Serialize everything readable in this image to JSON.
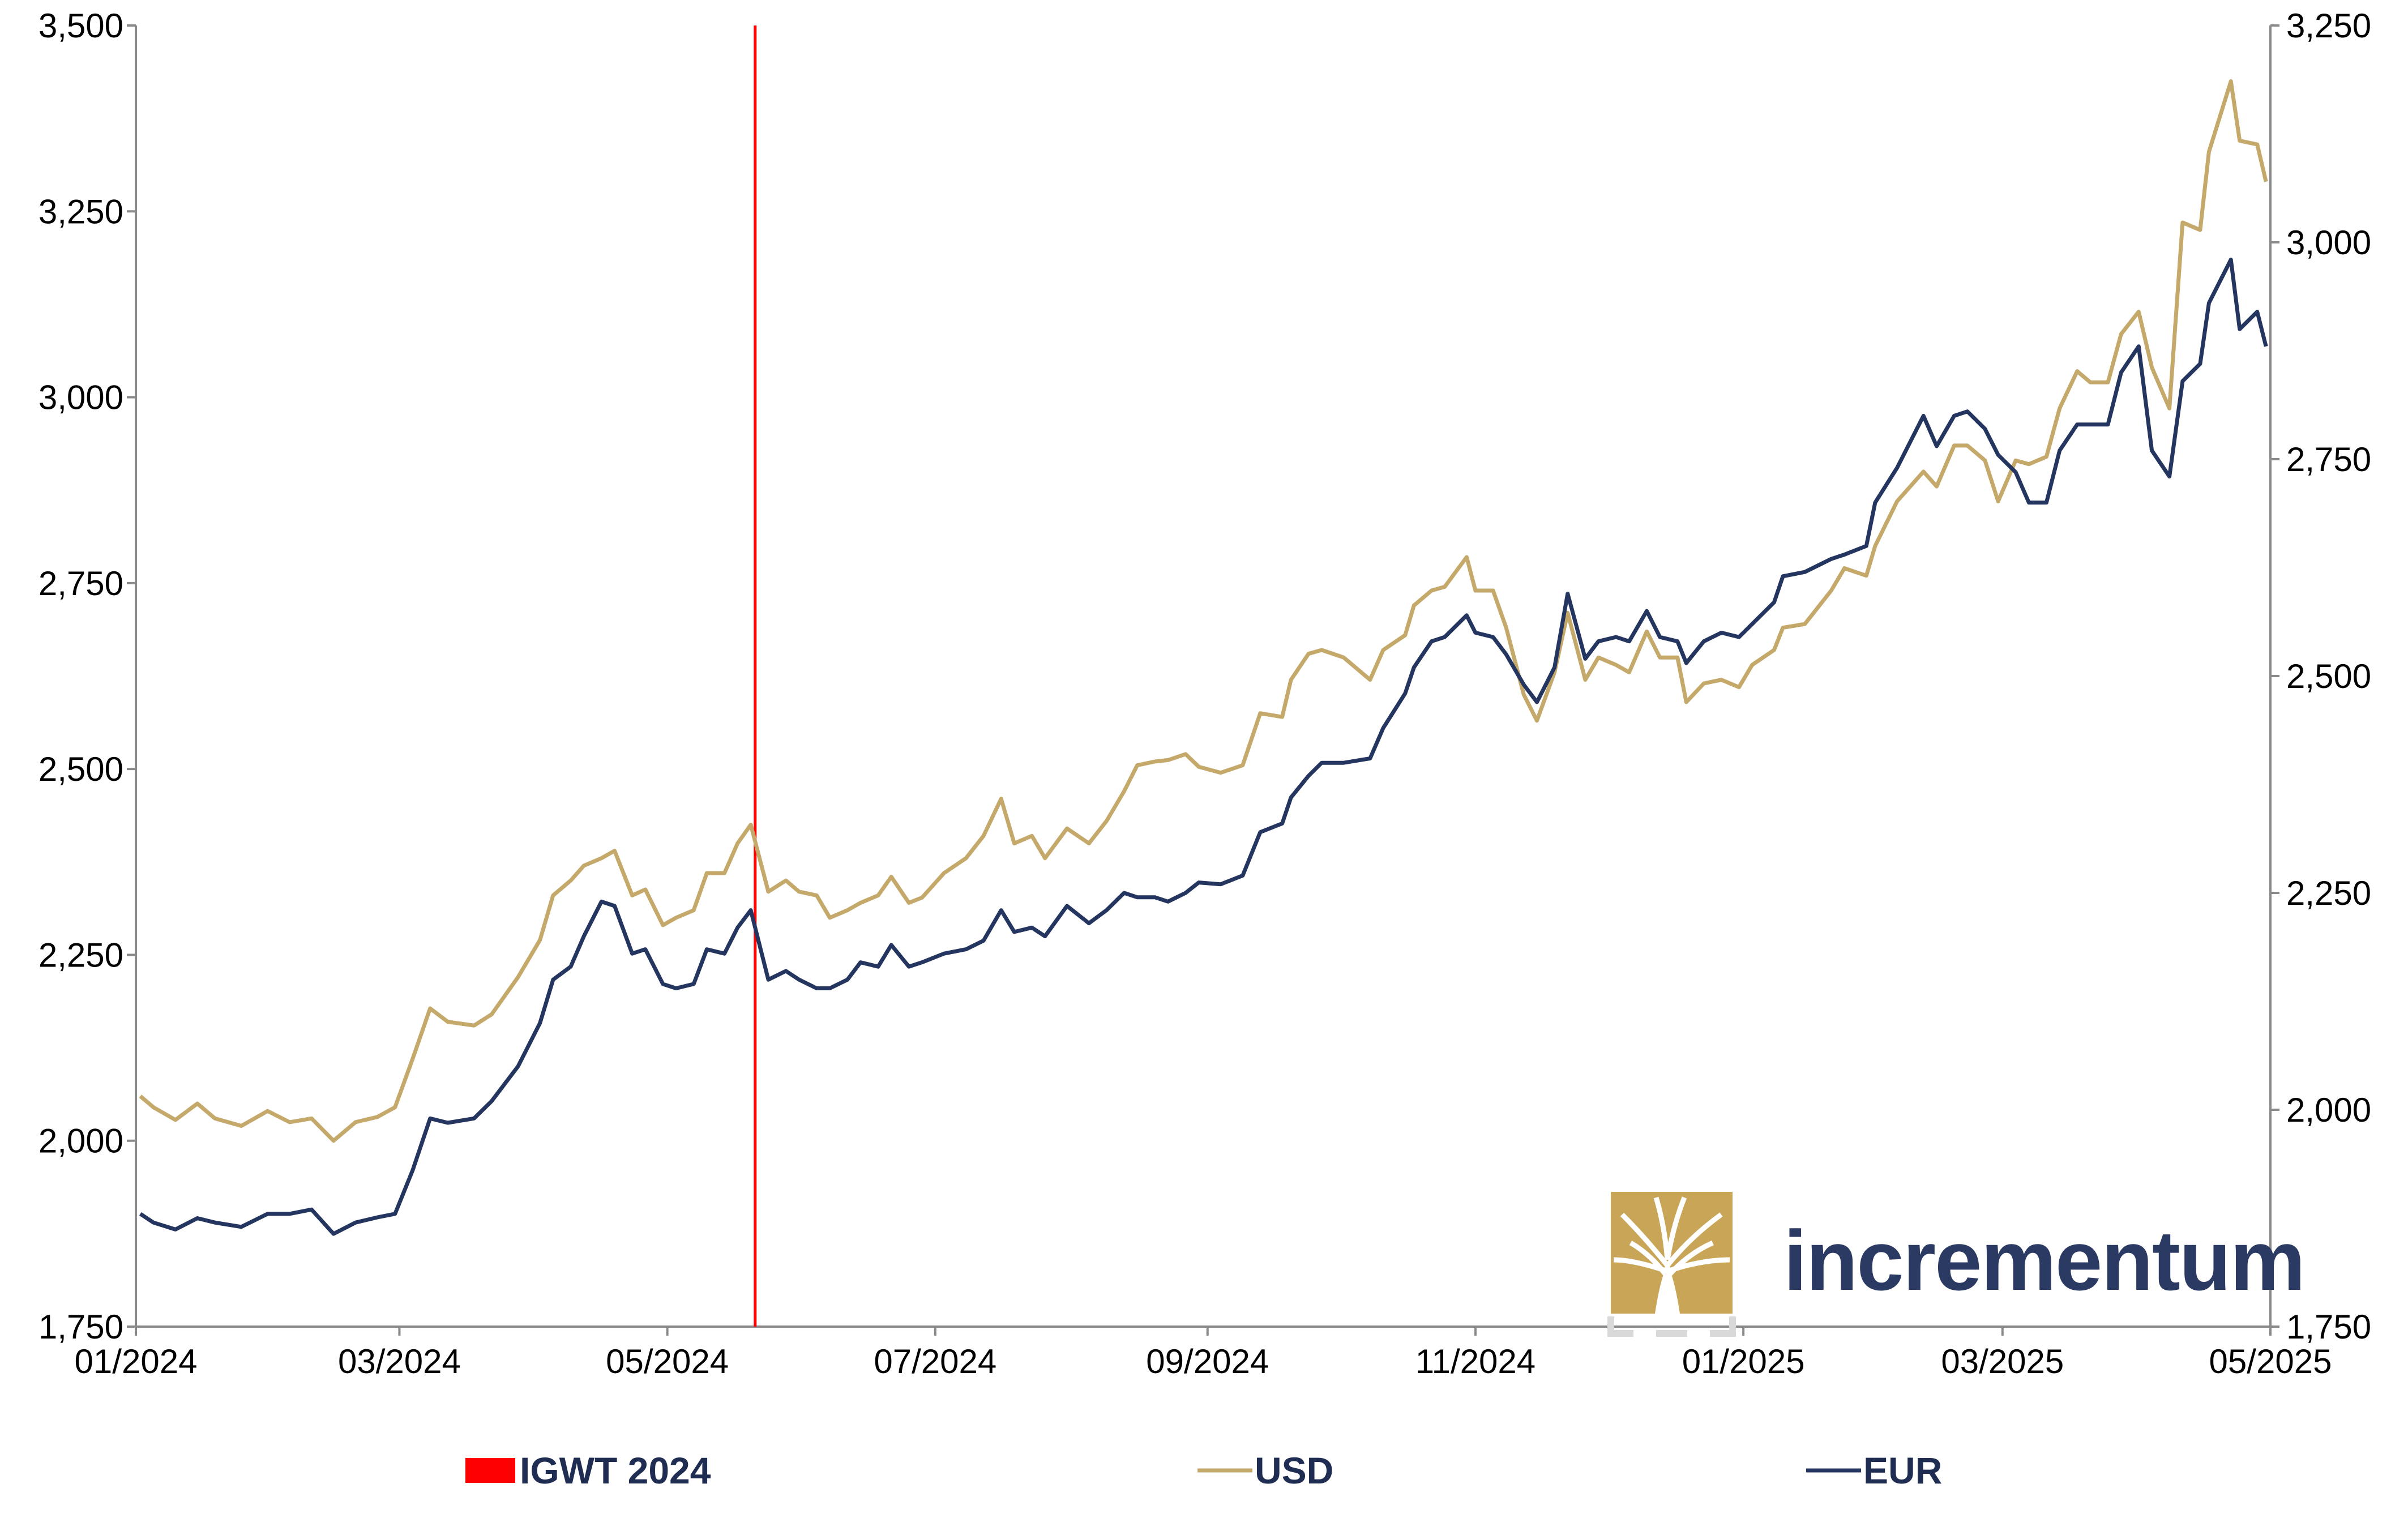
{
  "chart_data": {
    "type": "line",
    "title": "",
    "x_ticks": [
      "01/2024",
      "03/2024",
      "05/2024",
      "07/2024",
      "09/2024",
      "11/2024",
      "01/2025",
      "03/2025",
      "05/2025"
    ],
    "x_range": [
      "2024-01-01",
      "2025-05-01"
    ],
    "y_left": {
      "ticks": [
        "1,750",
        "2,000",
        "2,250",
        "2,500",
        "2,750",
        "3,000",
        "3,250",
        "3,500"
      ],
      "range": [
        1750,
        3500
      ],
      "series": "USD"
    },
    "y_right": {
      "ticks": [
        "1,750",
        "2,000",
        "2,250",
        "2,500",
        "2,750",
        "3,000",
        "3,250"
      ],
      "range": [
        1750,
        3250
      ],
      "series": "EUR"
    },
    "grid": false,
    "legend_position": "bottom",
    "legend": [
      {
        "label": "IGWT 2024",
        "color": "#ff0000",
        "kind": "bar"
      },
      {
        "label": "USD",
        "color": "#c4a96b",
        "kind": "line"
      },
      {
        "label": "EUR",
        "color": "#24355f",
        "kind": "line"
      }
    ],
    "annotation": {
      "label": "IGWT 2024",
      "date": "2024-05-21",
      "color": "#ff0000"
    },
    "series": [
      {
        "name": "USD",
        "axis": "left",
        "color": "#c4a96b",
        "points": [
          [
            "2024-01-02",
            2060
          ],
          [
            "2024-01-05",
            2045
          ],
          [
            "2024-01-10",
            2028
          ],
          [
            "2024-01-15",
            2050
          ],
          [
            "2024-01-19",
            2030
          ],
          [
            "2024-01-25",
            2020
          ],
          [
            "2024-01-31",
            2040
          ],
          [
            "2024-02-05",
            2025
          ],
          [
            "2024-02-10",
            2030
          ],
          [
            "2024-02-15",
            2000
          ],
          [
            "2024-02-20",
            2025
          ],
          [
            "2024-02-25",
            2032
          ],
          [
            "2024-02-29",
            2045
          ],
          [
            "2024-03-04",
            2110
          ],
          [
            "2024-03-08",
            2178
          ],
          [
            "2024-03-12",
            2160
          ],
          [
            "2024-03-18",
            2155
          ],
          [
            "2024-03-22",
            2170
          ],
          [
            "2024-03-28",
            2220
          ],
          [
            "2024-04-02",
            2270
          ],
          [
            "2024-04-05",
            2330
          ],
          [
            "2024-04-09",
            2350
          ],
          [
            "2024-04-12",
            2370
          ],
          [
            "2024-04-16",
            2380
          ],
          [
            "2024-04-19",
            2390
          ],
          [
            "2024-04-23",
            2330
          ],
          [
            "2024-04-26",
            2338
          ],
          [
            "2024-04-30",
            2290
          ],
          [
            "2024-05-03",
            2300
          ],
          [
            "2024-05-07",
            2310
          ],
          [
            "2024-05-10",
            2360
          ],
          [
            "2024-05-14",
            2360
          ],
          [
            "2024-05-17",
            2400
          ],
          [
            "2024-05-20",
            2425
          ],
          [
            "2024-05-24",
            2335
          ],
          [
            "2024-05-28",
            2350
          ],
          [
            "2024-05-31",
            2335
          ],
          [
            "2024-06-04",
            2330
          ],
          [
            "2024-06-07",
            2300
          ],
          [
            "2024-06-11",
            2310
          ],
          [
            "2024-06-14",
            2320
          ],
          [
            "2024-06-18",
            2330
          ],
          [
            "2024-06-21",
            2355
          ],
          [
            "2024-06-25",
            2320
          ],
          [
            "2024-06-28",
            2327
          ],
          [
            "2024-07-03",
            2360
          ],
          [
            "2024-07-08",
            2380
          ],
          [
            "2024-07-12",
            2410
          ],
          [
            "2024-07-16",
            2460
          ],
          [
            "2024-07-19",
            2400
          ],
          [
            "2024-07-23",
            2410
          ],
          [
            "2024-07-26",
            2380
          ],
          [
            "2024-07-31",
            2420
          ],
          [
            "2024-08-05",
            2400
          ],
          [
            "2024-08-09",
            2430
          ],
          [
            "2024-08-13",
            2470
          ],
          [
            "2024-08-16",
            2505
          ],
          [
            "2024-08-20",
            2510
          ],
          [
            "2024-08-23",
            2512
          ],
          [
            "2024-08-27",
            2520
          ],
          [
            "2024-08-30",
            2503
          ],
          [
            "2024-09-04",
            2495
          ],
          [
            "2024-09-09",
            2505
          ],
          [
            "2024-09-13",
            2575
          ],
          [
            "2024-09-18",
            2570
          ],
          [
            "2024-09-20",
            2620
          ],
          [
            "2024-09-24",
            2655
          ],
          [
            "2024-09-27",
            2660
          ],
          [
            "2024-10-02",
            2650
          ],
          [
            "2024-10-08",
            2620
          ],
          [
            "2024-10-11",
            2660
          ],
          [
            "2024-10-16",
            2680
          ],
          [
            "2024-10-18",
            2720
          ],
          [
            "2024-10-22",
            2740
          ],
          [
            "2024-10-25",
            2745
          ],
          [
            "2024-10-30",
            2785
          ],
          [
            "2024-11-01",
            2740
          ],
          [
            "2024-11-05",
            2740
          ],
          [
            "2024-11-08",
            2690
          ],
          [
            "2024-11-12",
            2600
          ],
          [
            "2024-11-15",
            2565
          ],
          [
            "2024-11-19",
            2630
          ],
          [
            "2024-11-22",
            2710
          ],
          [
            "2024-11-26",
            2620
          ],
          [
            "2024-11-29",
            2650
          ],
          [
            "2024-12-03",
            2640
          ],
          [
            "2024-12-06",
            2630
          ],
          [
            "2024-12-10",
            2685
          ],
          [
            "2024-12-13",
            2650
          ],
          [
            "2024-12-17",
            2650
          ],
          [
            "2024-12-19",
            2590
          ],
          [
            "2024-12-23",
            2615
          ],
          [
            "2024-12-27",
            2620
          ],
          [
            "2024-12-31",
            2610
          ],
          [
            "2025-01-03",
            2640
          ],
          [
            "2025-01-08",
            2660
          ],
          [
            "2025-01-10",
            2690
          ],
          [
            "2025-01-15",
            2695
          ],
          [
            "2025-01-21",
            2740
          ],
          [
            "2025-01-24",
            2770
          ],
          [
            "2025-01-29",
            2760
          ],
          [
            "2025-01-31",
            2800
          ],
          [
            "2025-02-05",
            2860
          ],
          [
            "2025-02-11",
            2900
          ],
          [
            "2025-02-14",
            2880
          ],
          [
            "2025-02-18",
            2935
          ],
          [
            "2025-02-21",
            2935
          ],
          [
            "2025-02-25",
            2915
          ],
          [
            "2025-02-28",
            2860
          ],
          [
            "2025-03-04",
            2915
          ],
          [
            "2025-03-07",
            2910
          ],
          [
            "2025-03-11",
            2920
          ],
          [
            "2025-03-14",
            2985
          ],
          [
            "2025-03-18",
            3035
          ],
          [
            "2025-03-21",
            3020
          ],
          [
            "2025-03-25",
            3020
          ],
          [
            "2025-03-28",
            3085
          ],
          [
            "2025-04-01",
            3115
          ],
          [
            "2025-04-04",
            3040
          ],
          [
            "2025-04-08",
            2985
          ],
          [
            "2025-04-11",
            3235
          ],
          [
            "2025-04-15",
            3225
          ],
          [
            "2025-04-17",
            3330
          ],
          [
            "2025-04-22",
            3425
          ],
          [
            "2025-04-24",
            3345
          ],
          [
            "2025-04-28",
            3340
          ],
          [
            "2025-04-30",
            3290
          ]
        ]
      },
      {
        "name": "EUR",
        "axis": "right",
        "color": "#24355f",
        "points": [
          [
            "2024-01-02",
            1880
          ],
          [
            "2024-01-05",
            1870
          ],
          [
            "2024-01-10",
            1862
          ],
          [
            "2024-01-15",
            1875
          ],
          [
            "2024-01-19",
            1870
          ],
          [
            "2024-01-25",
            1865
          ],
          [
            "2024-01-31",
            1880
          ],
          [
            "2024-02-05",
            1880
          ],
          [
            "2024-02-10",
            1885
          ],
          [
            "2024-02-15",
            1857
          ],
          [
            "2024-02-20",
            1870
          ],
          [
            "2024-02-25",
            1876
          ],
          [
            "2024-02-29",
            1880
          ],
          [
            "2024-03-04",
            1930
          ],
          [
            "2024-03-08",
            1990
          ],
          [
            "2024-03-12",
            1985
          ],
          [
            "2024-03-18",
            1990
          ],
          [
            "2024-03-22",
            2010
          ],
          [
            "2024-03-28",
            2050
          ],
          [
            "2024-04-02",
            2100
          ],
          [
            "2024-04-05",
            2150
          ],
          [
            "2024-04-09",
            2165
          ],
          [
            "2024-04-12",
            2200
          ],
          [
            "2024-04-16",
            2240
          ],
          [
            "2024-04-19",
            2235
          ],
          [
            "2024-04-23",
            2180
          ],
          [
            "2024-04-26",
            2185
          ],
          [
            "2024-04-30",
            2145
          ],
          [
            "2024-05-03",
            2140
          ],
          [
            "2024-05-07",
            2145
          ],
          [
            "2024-05-10",
            2185
          ],
          [
            "2024-05-14",
            2180
          ],
          [
            "2024-05-17",
            2210
          ],
          [
            "2024-05-20",
            2230
          ],
          [
            "2024-05-24",
            2150
          ],
          [
            "2024-05-28",
            2160
          ],
          [
            "2024-05-31",
            2150
          ],
          [
            "2024-06-04",
            2140
          ],
          [
            "2024-06-07",
            2140
          ],
          [
            "2024-06-11",
            2150
          ],
          [
            "2024-06-14",
            2170
          ],
          [
            "2024-06-18",
            2165
          ],
          [
            "2024-06-21",
            2190
          ],
          [
            "2024-06-25",
            2165
          ],
          [
            "2024-06-28",
            2170
          ],
          [
            "2024-07-03",
            2180
          ],
          [
            "2024-07-08",
            2185
          ],
          [
            "2024-07-12",
            2195
          ],
          [
            "2024-07-16",
            2230
          ],
          [
            "2024-07-19",
            2205
          ],
          [
            "2024-07-23",
            2210
          ],
          [
            "2024-07-26",
            2200
          ],
          [
            "2024-07-31",
            2235
          ],
          [
            "2024-08-05",
            2215
          ],
          [
            "2024-08-09",
            2230
          ],
          [
            "2024-08-13",
            2250
          ],
          [
            "2024-08-16",
            2245
          ],
          [
            "2024-08-20",
            2245
          ],
          [
            "2024-08-23",
            2240
          ],
          [
            "2024-08-27",
            2250
          ],
          [
            "2024-08-30",
            2262
          ],
          [
            "2024-09-04",
            2260
          ],
          [
            "2024-09-09",
            2270
          ],
          [
            "2024-09-13",
            2320
          ],
          [
            "2024-09-18",
            2330
          ],
          [
            "2024-09-20",
            2360
          ],
          [
            "2024-09-24",
            2385
          ],
          [
            "2024-09-27",
            2400
          ],
          [
            "2024-10-02",
            2400
          ],
          [
            "2024-10-08",
            2405
          ],
          [
            "2024-10-11",
            2440
          ],
          [
            "2024-10-16",
            2480
          ],
          [
            "2024-10-18",
            2510
          ],
          [
            "2024-10-22",
            2540
          ],
          [
            "2024-10-25",
            2545
          ],
          [
            "2024-10-30",
            2570
          ],
          [
            "2024-11-01",
            2550
          ],
          [
            "2024-11-05",
            2545
          ],
          [
            "2024-11-08",
            2525
          ],
          [
            "2024-11-12",
            2490
          ],
          [
            "2024-11-15",
            2470
          ],
          [
            "2024-11-19",
            2510
          ],
          [
            "2024-11-22",
            2595
          ],
          [
            "2024-11-26",
            2520
          ],
          [
            "2024-11-29",
            2540
          ],
          [
            "2024-12-03",
            2545
          ],
          [
            "2024-12-06",
            2540
          ],
          [
            "2024-12-10",
            2575
          ],
          [
            "2024-12-13",
            2545
          ],
          [
            "2024-12-17",
            2540
          ],
          [
            "2024-12-19",
            2515
          ],
          [
            "2024-12-23",
            2540
          ],
          [
            "2024-12-27",
            2550
          ],
          [
            "2024-12-31",
            2545
          ],
          [
            "2025-01-03",
            2560
          ],
          [
            "2025-01-08",
            2585
          ],
          [
            "2025-01-10",
            2615
          ],
          [
            "2025-01-15",
            2620
          ],
          [
            "2025-01-21",
            2635
          ],
          [
            "2025-01-24",
            2640
          ],
          [
            "2025-01-29",
            2650
          ],
          [
            "2025-01-31",
            2700
          ],
          [
            "2025-02-05",
            2740
          ],
          [
            "2025-02-11",
            2800
          ],
          [
            "2025-02-14",
            2765
          ],
          [
            "2025-02-18",
            2800
          ],
          [
            "2025-02-21",
            2805
          ],
          [
            "2025-02-25",
            2785
          ],
          [
            "2025-02-28",
            2755
          ],
          [
            "2025-03-04",
            2735
          ],
          [
            "2025-03-07",
            2700
          ],
          [
            "2025-03-11",
            2700
          ],
          [
            "2025-03-14",
            2760
          ],
          [
            "2025-03-18",
            2790
          ],
          [
            "2025-03-21",
            2790
          ],
          [
            "2025-03-25",
            2790
          ],
          [
            "2025-03-28",
            2850
          ],
          [
            "2025-04-01",
            2880
          ],
          [
            "2025-04-04",
            2760
          ],
          [
            "2025-04-08",
            2730
          ],
          [
            "2025-04-11",
            2840
          ],
          [
            "2025-04-15",
            2860
          ],
          [
            "2025-04-17",
            2930
          ],
          [
            "2025-04-22",
            2980
          ],
          [
            "2025-04-24",
            2900
          ],
          [
            "2025-04-28",
            2920
          ],
          [
            "2025-04-30",
            2880
          ]
        ]
      }
    ]
  },
  "branding": {
    "logo_text": "incrementum",
    "logo_color": "#c9a657",
    "logo_text_color": "#2b3a62"
  }
}
